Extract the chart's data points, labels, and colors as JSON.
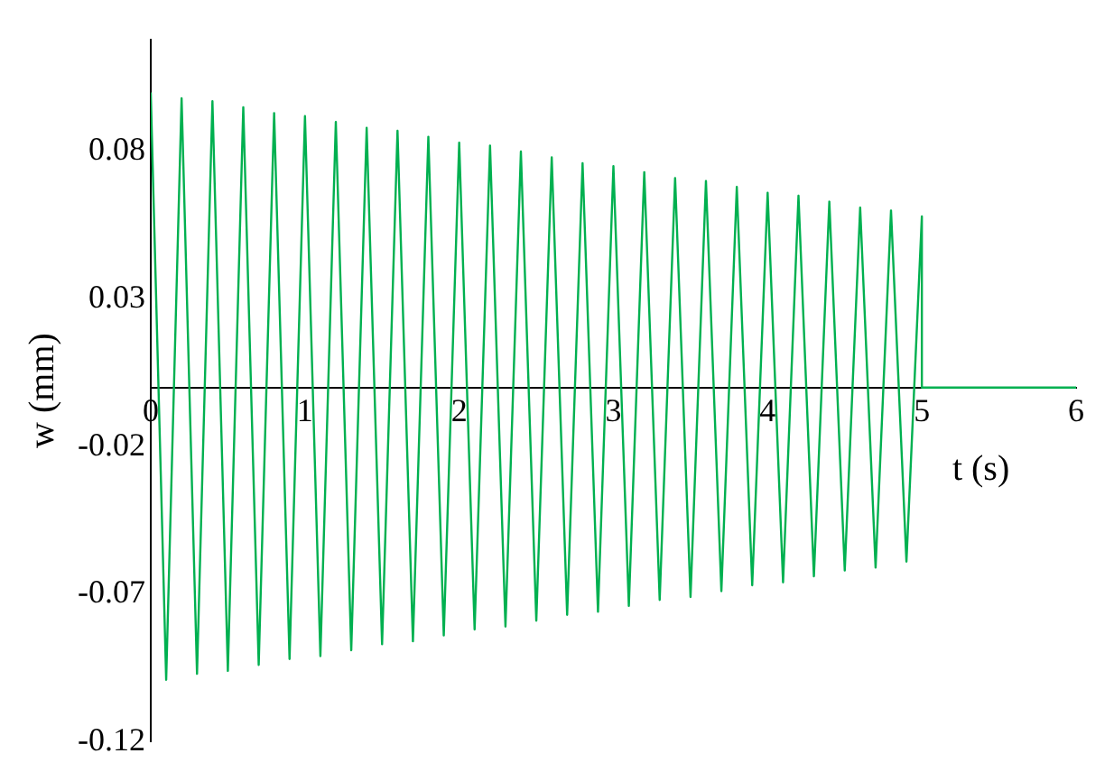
{
  "chart_data": {
    "type": "line",
    "xlabel": "t (s)",
    "ylabel": "w (mm)",
    "xlim": [
      0,
      6
    ],
    "xticks": [
      0,
      1,
      2,
      3,
      4,
      5,
      6
    ],
    "ylim": [
      -0.12,
      0.118
    ],
    "yticks": [
      -0.12,
      -0.07,
      -0.02,
      0.03,
      0.08
    ],
    "grid": false,
    "legend": false,
    "marker": "none",
    "line_style": "solid",
    "x": [
      0,
      0.1,
      0.2,
      0.3,
      0.4,
      0.5,
      0.6,
      0.7,
      0.8,
      0.9,
      1,
      1.1,
      1.2,
      1.3,
      1.4,
      1.5,
      1.6,
      1.7,
      1.8,
      1.9,
      2,
      2.1,
      2.2,
      2.3,
      2.4,
      2.5,
      2.6,
      2.7,
      2.8,
      2.9,
      3,
      3.1,
      3.2,
      3.3,
      3.4,
      3.5,
      3.6,
      3.7,
      3.8,
      3.9,
      4,
      4.1,
      4.2,
      4.3,
      4.4,
      4.5,
      4.6,
      4.7,
      4.8,
      4.9,
      5,
      5,
      6
    ],
    "series": [
      {
        "color": "#00b050",
        "values": [
          0.1,
          -0.099,
          0.098,
          -0.097,
          0.097,
          -0.096,
          0.095,
          -0.094,
          0.093,
          -0.092,
          0.092,
          -0.091,
          0.09,
          -0.089,
          0.088,
          -0.087,
          0.087,
          -0.086,
          0.085,
          -0.084,
          0.083,
          -0.082,
          0.082,
          -0.081,
          0.08,
          -0.079,
          0.078,
          -0.077,
          0.076,
          -0.076,
          0.075,
          -0.074,
          0.073,
          -0.072,
          0.071,
          -0.071,
          0.07,
          -0.069,
          0.068,
          -0.067,
          0.066,
          -0.066,
          0.065,
          -0.064,
          0.063,
          -0.062,
          0.061,
          -0.061,
          0.06,
          -0.059,
          0.058,
          0,
          0
        ]
      }
    ]
  }
}
